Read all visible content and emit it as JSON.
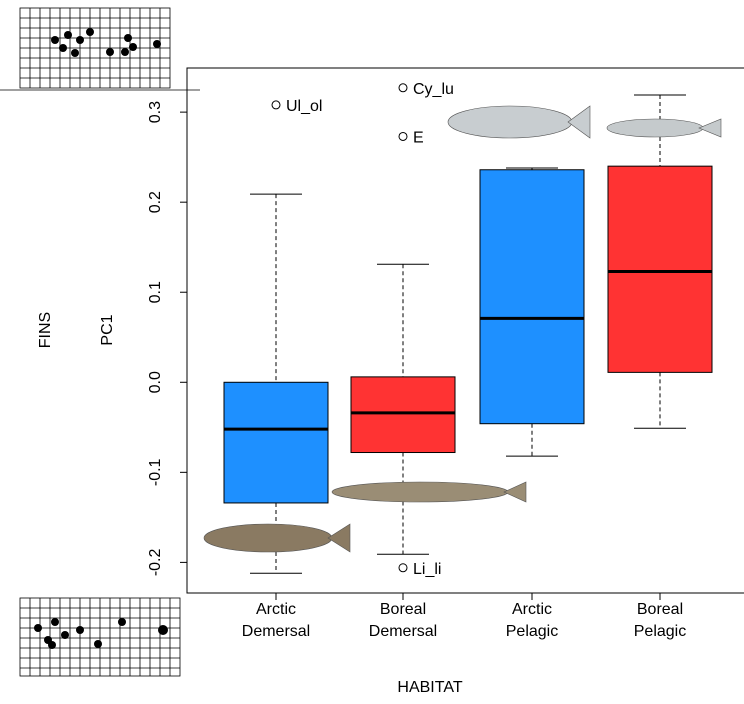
{
  "chart_data": {
    "type": "box",
    "x_label": "HABITAT",
    "y_label": "PC1",
    "side_label": "FINS",
    "categories": [
      [
        "Arctic",
        "Demersal"
      ],
      [
        "Boreal",
        "Demersal"
      ],
      [
        "Arctic",
        "Pelagic"
      ],
      [
        "Boreal",
        "Pelagic"
      ]
    ],
    "colors": [
      "#1e90ff",
      "#ff3333",
      "#1e90ff",
      "#ff3333"
    ],
    "boxes": [
      {
        "whisker_low": -0.212,
        "q1": -0.134,
        "median": -0.052,
        "q3": 0.0,
        "whisker_high": 0.209,
        "outliers": [
          {
            "label": "Ul_ol",
            "value": 0.308
          }
        ]
      },
      {
        "whisker_low": -0.191,
        "q1": -0.078,
        "median": -0.034,
        "q3": 0.006,
        "whisker_high": 0.131,
        "outliers": [
          {
            "label": "Cy_lu",
            "value": 0.327
          },
          {
            "label": "E",
            "value": 0.273
          },
          {
            "label": "Li_li",
            "value": -0.206
          }
        ]
      },
      {
        "whisker_low": -0.082,
        "q1": -0.046,
        "median": 0.071,
        "q3": 0.236,
        "whisker_high": 0.238,
        "outliers": []
      },
      {
        "whisker_low": -0.051,
        "q1": 0.011,
        "median": 0.123,
        "q3": 0.24,
        "whisker_high": 0.319,
        "outliers": []
      }
    ],
    "ylim": [
      -0.234,
      0.349
    ],
    "yticks": [
      -0.2,
      -0.1,
      {
        "value": 0,
        "label": "0.0"
      },
      0.1,
      0.2,
      0.3
    ]
  }
}
